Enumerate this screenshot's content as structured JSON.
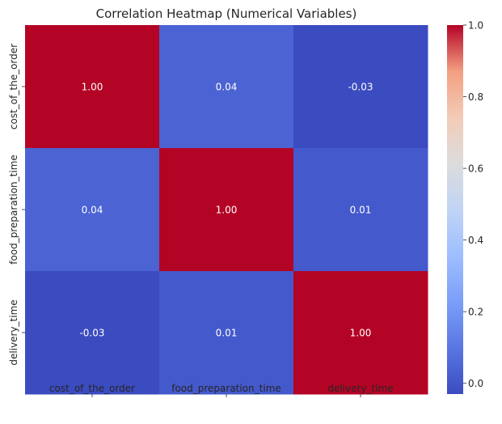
{
  "chart_data": {
    "type": "heatmap",
    "title": "Correlation Heatmap (Numerical Variables)",
    "xlabel": "",
    "ylabel": "",
    "x_categories": [
      "cost_of_the_order",
      "food_preparation_time",
      "delivery_time"
    ],
    "y_categories": [
      "cost_of_the_order",
      "food_preparation_time",
      "delivery_time"
    ],
    "values": [
      [
        1.0,
        0.04,
        -0.03
      ],
      [
        0.04,
        1.0,
        0.01
      ],
      [
        -0.03,
        0.01,
        1.0
      ]
    ],
    "cell_labels": [
      [
        "1.00",
        "0.04",
        "-0.03"
      ],
      [
        "0.04",
        "1.00",
        "0.01"
      ],
      [
        "-0.03",
        "0.01",
        "1.00"
      ]
    ],
    "colormap": "coolwarm",
    "color_range": [
      -0.03,
      1.0
    ],
    "colorbar_ticks": [
      0.0,
      0.2,
      0.4,
      0.6,
      0.8,
      1.0
    ],
    "colorbar_tick_labels": [
      "0.0",
      "0.2",
      "0.4",
      "0.6",
      "0.8",
      "1.0"
    ],
    "grid": false
  }
}
